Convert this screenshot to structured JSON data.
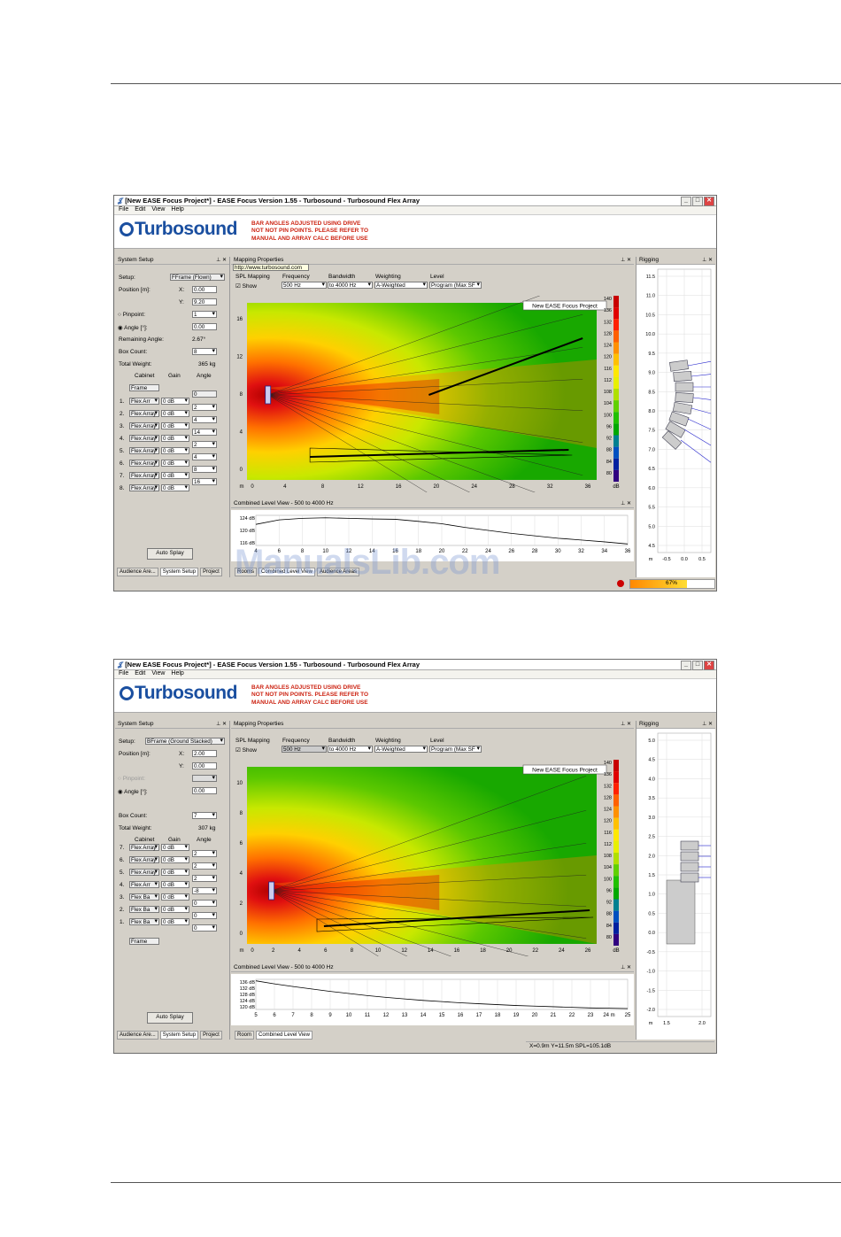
{
  "window_title": "[New EASE Focus Project*] - EASE Focus Version 1.55 - Turbosound - Turbosound Flex Array",
  "menu": [
    "File",
    "Edit",
    "View",
    "Help"
  ],
  "logo": "Turbosound",
  "warning_lines": [
    "BAR ANGLES ADJUSTED USING DRIVE",
    "NOT NOT PIN POINTS. PLEASE REFER TO",
    "MANUAL AND ARRAY CALC BEFORE USE"
  ],
  "watermark": "ManualsLib.com",
  "screen1": {
    "system_setup_title": "System Setup",
    "setup_label": "Setup:",
    "setup_value": "FFrame (Flown)",
    "position_label": "Position [m]:",
    "x_label": "X:",
    "x_value": "0.00",
    "y_label": "Y:",
    "y_value": "9.20",
    "pinpoint_label": "Pinpoint:",
    "pinpoint_value": "1",
    "angle_label": "Angle [°]:",
    "angle_value": "0.00",
    "remaining_label": "Remaining Angle:",
    "remaining_value": "2.67°",
    "boxcount_label": "Box Count:",
    "boxcount_value": "8",
    "weight_label": "Total Weight:",
    "weight_value": "365 kg",
    "col_headers": [
      "Cabinet",
      "Gain",
      "Angle"
    ],
    "frame_label": "Frame",
    "frame_angle": "0",
    "rows": [
      {
        "n": "1.",
        "cab": "Flex Arr",
        "gain": "0 dB",
        "angle": "2"
      },
      {
        "n": "2.",
        "cab": "Flex Array",
        "gain": "0 dB",
        "angle": "4"
      },
      {
        "n": "3.",
        "cab": "Flex Array",
        "gain": "0 dB",
        "angle": "14"
      },
      {
        "n": "4.",
        "cab": "Flex Array",
        "gain": "0 dB",
        "angle": "2"
      },
      {
        "n": "5.",
        "cab": "Flex Array",
        "gain": "0 dB",
        "angle": "4"
      },
      {
        "n": "6.",
        "cab": "Flex Array",
        "gain": "0 dB",
        "angle": "8"
      },
      {
        "n": "7.",
        "cab": "Flex Array",
        "gain": "0 dB",
        "angle": "16"
      },
      {
        "n": "8.",
        "cab": "Flex Array",
        "gain": "0 dB",
        "angle": ""
      }
    ],
    "auto_splay": "Auto Splay",
    "tabs_left": [
      "Audience Are...",
      "System Setup",
      "Project"
    ],
    "mapping_title": "Mapping Properties",
    "tooltip": "http://www.turbosound.com",
    "mp_labels": [
      "SPL Mapping",
      "Frequency",
      "Bandwidth",
      "Weighting",
      "Level"
    ],
    "show_label": "Show",
    "mp_values": [
      "500 Hz",
      "to 4000 Hz",
      "A-Weighted",
      "Program (Max SF"
    ],
    "project_badge": "New EASE Focus Project",
    "map_x_ticks": [
      "0",
      "4",
      "8",
      "12",
      "16",
      "20",
      "24",
      "28",
      "32",
      "36"
    ],
    "map_y_ticks": [
      "16",
      "12",
      "8",
      "4",
      "0"
    ],
    "map_x_unit": "m",
    "scale_ticks": [
      "140",
      "136",
      "132",
      "128",
      "124",
      "120",
      "116",
      "112",
      "108",
      "104",
      "100",
      "96",
      "92",
      "88",
      "84",
      "80"
    ],
    "scale_unit": "dB",
    "combined_title": "Combined Level View - 500 to 4000 Hz",
    "combined_y_ticks": [
      "124 dB",
      "120 dB",
      "116 dB"
    ],
    "combined_x_ticks": [
      "4",
      "6",
      "8",
      "10",
      "12",
      "14",
      "16",
      "18",
      "20",
      "22",
      "24",
      "26",
      "28",
      "30",
      "32",
      "34",
      "36"
    ],
    "tabs_mid": [
      "Rooms",
      "Combined Level View",
      "Audience Areas"
    ],
    "rigging_title": "Rigging",
    "rig_y_ticks": [
      "11.5",
      "11.0",
      "10.5",
      "10.0",
      "9.5",
      "9.0",
      "8.5",
      "8.0",
      "7.5",
      "7.0",
      "6.5",
      "6.0",
      "5.5",
      "5.0",
      "4.5"
    ],
    "rig_x_ticks": [
      "-0.5",
      "0.0",
      "0.5"
    ],
    "rig_unit": "m",
    "progress_label": "67%",
    "progress_value": 0.67
  },
  "screen2": {
    "system_setup_title": "System Setup",
    "setup_label": "Setup:",
    "setup_value": "BFrame (Ground Stacked)",
    "position_label": "Position [m]:",
    "x_label": "X:",
    "x_value": "2.00",
    "y_label": "Y:",
    "y_value": "0.00",
    "pinpoint_label": "Pinpoint:",
    "angle_label": "Angle [°]:",
    "angle_value": "0.00",
    "boxcount_label": "Box Count:",
    "boxcount_value": "7",
    "weight_label": "Total Weight:",
    "weight_value": "307 kg",
    "col_headers": [
      "Cabinet",
      "Gain",
      "Angle"
    ],
    "rows": [
      {
        "n": "7.",
        "cab": "Flex Array",
        "gain": "0 dB",
        "angle": "2"
      },
      {
        "n": "6.",
        "cab": "Flex Array",
        "gain": "0 dB",
        "angle": "2"
      },
      {
        "n": "5.",
        "cab": "Flex Array",
        "gain": "0 dB",
        "angle": "2"
      },
      {
        "n": "4.",
        "cab": "Flex Arr",
        "gain": "0 dB",
        "angle": "-8"
      },
      {
        "n": "3.",
        "cab": "Flex Ba",
        "gain": "0 dB",
        "angle": "0"
      },
      {
        "n": "2.",
        "cab": "Flex Ba",
        "gain": "0 dB",
        "angle": "0"
      },
      {
        "n": "1.",
        "cab": "Flex Ba",
        "gain": "0 dB",
        "angle": "0"
      }
    ],
    "frame_label": "Frame",
    "auto_splay": "Auto Splay",
    "tabs_left": [
      "Audience Are...",
      "System Setup",
      "Project"
    ],
    "mapping_title": "Mapping Properties",
    "mp_labels": [
      "SPL Mapping",
      "Frequency",
      "Bandwidth",
      "Weighting",
      "Level"
    ],
    "show_label": "Show",
    "mp_values": [
      "500 Hz",
      "to 4000 Hz",
      "A-Weighted",
      "Program (Max SF"
    ],
    "project_badge": "New EASE Focus Project",
    "map_x_ticks": [
      "0",
      "2",
      "4",
      "6",
      "8",
      "10",
      "12",
      "14",
      "16",
      "18",
      "20",
      "22",
      "24",
      "26"
    ],
    "map_y_ticks": [
      "10",
      "8",
      "6",
      "4",
      "2",
      "0"
    ],
    "map_x_unit": "m",
    "scale_ticks": [
      "140",
      "136",
      "132",
      "128",
      "124",
      "120",
      "116",
      "112",
      "108",
      "104",
      "100",
      "96",
      "92",
      "88",
      "84",
      "80"
    ],
    "scale_unit": "dB",
    "combined_title": "Combined Level View - 500 to 4000 Hz",
    "combined_y_ticks": [
      "136 dB",
      "132 dB",
      "128 dB",
      "124 dB",
      "120 dB"
    ],
    "combined_x_ticks": [
      "5",
      "6",
      "7",
      "8",
      "9",
      "10",
      "11",
      "12",
      "13",
      "14",
      "15",
      "16",
      "17",
      "18",
      "19",
      "20",
      "21",
      "22",
      "23",
      "24 m",
      "25"
    ],
    "tabs_mid": [
      "Room",
      "Combined Level View"
    ],
    "rigging_title": "Rigging",
    "rig_y_ticks": [
      "5.0",
      "4.5",
      "4.0",
      "3.5",
      "3.0",
      "2.5",
      "2.0",
      "1.5",
      "1.0",
      "0.5",
      "0.0",
      "-0.5",
      "-1.0",
      "-1.5",
      "-2.0"
    ],
    "rig_x_ticks": [
      "1.5",
      "2.0"
    ],
    "rig_unit": "m",
    "status_text": "X=0.9m Y=11.5m SPL=105.1dB"
  }
}
